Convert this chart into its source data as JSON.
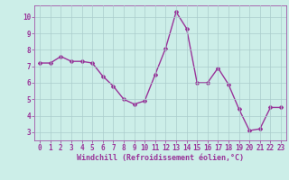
{
  "x": [
    0,
    1,
    2,
    3,
    4,
    5,
    6,
    7,
    8,
    9,
    10,
    11,
    12,
    13,
    14,
    15,
    16,
    17,
    18,
    19,
    20,
    21,
    22,
    23
  ],
  "y": [
    7.2,
    7.2,
    7.6,
    7.3,
    7.3,
    7.2,
    6.4,
    5.8,
    5.0,
    4.7,
    4.9,
    6.5,
    8.1,
    10.3,
    9.3,
    6.0,
    6.0,
    6.9,
    5.9,
    4.4,
    3.1,
    3.2,
    4.5,
    4.5
  ],
  "line_color": "#993399",
  "marker": "D",
  "marker_size": 2.0,
  "line_width": 1.0,
  "bg_color": "#cceee8",
  "grid_color": "#aacccc",
  "xlabel": "Windchill (Refroidissement éolien,°C)",
  "xlabel_color": "#993399",
  "xlabel_fontsize": 6.0,
  "tick_color": "#993399",
  "tick_fontsize": 5.5,
  "xlim": [
    -0.5,
    23.5
  ],
  "ylim": [
    2.5,
    10.7
  ],
  "yticks": [
    3,
    4,
    5,
    6,
    7,
    8,
    9,
    10
  ],
  "xticks": [
    0,
    1,
    2,
    3,
    4,
    5,
    6,
    7,
    8,
    9,
    10,
    11,
    12,
    13,
    14,
    15,
    16,
    17,
    18,
    19,
    20,
    21,
    22,
    23
  ],
  "grid_on": true,
  "spine_color": "#993399"
}
